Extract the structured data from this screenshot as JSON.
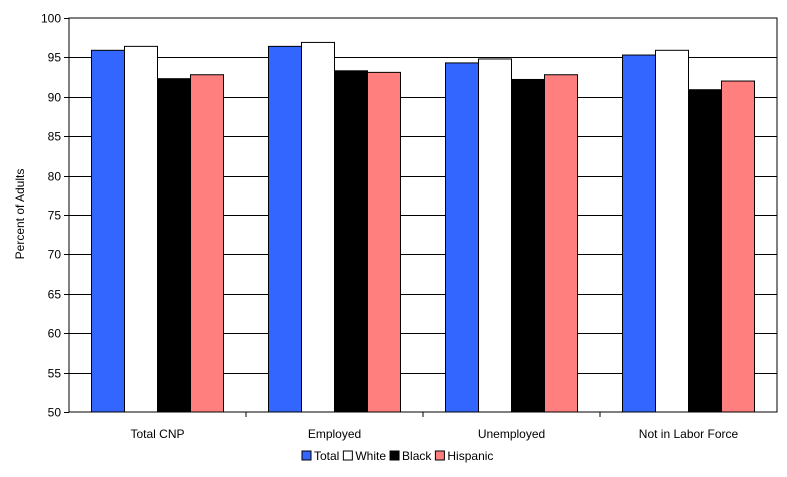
{
  "chart_data": {
    "type": "bar",
    "title": "",
    "xlabel": "",
    "ylabel": "Percent of Adults",
    "ylim": [
      50,
      100
    ],
    "yticks": [
      50,
      55,
      60,
      65,
      70,
      75,
      80,
      85,
      90,
      95,
      100
    ],
    "grid": true,
    "legend_position": "bottom",
    "categories": [
      "Total CNP",
      "Employed",
      "Unemployed",
      "Not in Labor Force"
    ],
    "series": [
      {
        "name": "Total",
        "color": "#3366ff",
        "values": [
          95.9,
          96.4,
          94.3,
          95.3
        ]
      },
      {
        "name": "White",
        "color": "#ffffff",
        "values": [
          96.4,
          96.9,
          94.8,
          95.9
        ]
      },
      {
        "name": "Black",
        "color": "#000000",
        "values": [
          92.3,
          93.3,
          92.2,
          90.9
        ]
      },
      {
        "name": "Hispanic",
        "color": "#ff7f7f",
        "values": [
          92.8,
          93.1,
          92.8,
          92.0
        ]
      }
    ]
  }
}
